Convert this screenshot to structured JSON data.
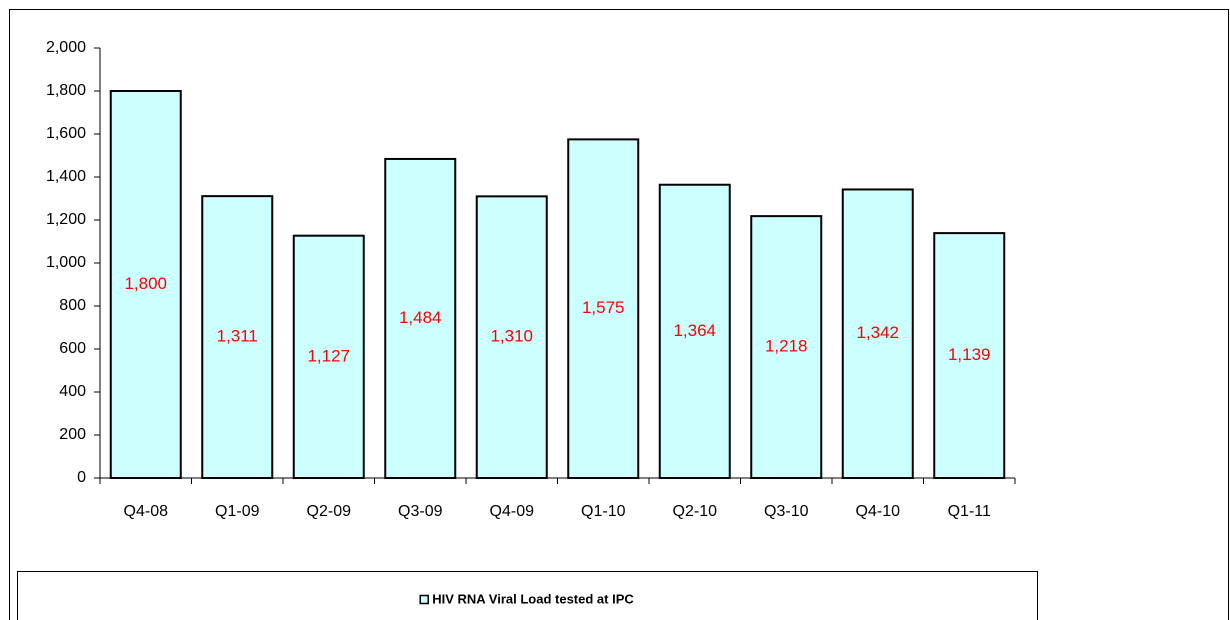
{
  "chart_data": {
    "type": "bar",
    "categories": [
      "Q4-08",
      "Q1-09",
      "Q2-09",
      "Q3-09",
      "Q4-09",
      "Q1-10",
      "Q2-10",
      "Q3-10",
      "Q4-10",
      "Q1-11"
    ],
    "series": [
      {
        "name": "HIV RNA Viral Load tested  at IPC",
        "color": "#ccffff",
        "values": [
          1800,
          1311,
          1127,
          1484,
          1310,
          1575,
          1364,
          1218,
          1342,
          1139
        ],
        "value_labels": [
          "1,800",
          "1,311",
          "1,127",
          "1,484",
          "1,310",
          "1,575",
          "1,364",
          "1,218",
          "1,342",
          "1,139"
        ]
      }
    ],
    "ylim": [
      0,
      2000
    ],
    "yticks": [
      0,
      200,
      400,
      600,
      800,
      {
        "value": 1000,
        "label": "1,000"
      },
      {
        "value": 1200,
        "label": "1,200"
      },
      {
        "value": 1400,
        "label": "1,400"
      },
      {
        "value": 1600,
        "label": "1,600"
      },
      {
        "value": 1800,
        "label": "1,800"
      },
      {
        "value": 2000,
        "label": "2,000"
      }
    ],
    "grid": false,
    "legend": "bottom",
    "value_label_color": "#ff0000"
  }
}
